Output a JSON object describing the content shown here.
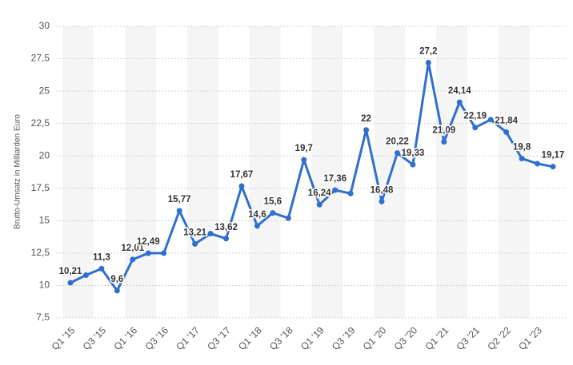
{
  "chart_data": {
    "type": "line",
    "y_axis_label": "Brutto-Umsatz in Milliarden Euro",
    "categories": [
      "Q1 '15",
      null,
      "Q3 '15",
      null,
      "Q1 '16",
      null,
      "Q3 '16",
      null,
      "Q1 '17",
      null,
      "Q3 '17",
      null,
      "Q1 '18",
      null,
      "Q3 '18",
      null,
      "Q1 '19",
      null,
      "Q3 '19",
      null,
      "Q1 '20",
      null,
      "Q3 '20",
      null,
      "Q1 '21",
      null,
      "Q3 '21",
      null,
      "Q2 '22",
      null,
      "Q1 '23",
      null
    ],
    "series": [
      {
        "color": "#2f6fcf",
        "values": [
          10.21,
          10.8,
          11.3,
          9.6,
          12.01,
          12.49,
          12.5,
          15.77,
          13.21,
          14.0,
          13.62,
          17.67,
          14.6,
          15.6,
          15.2,
          19.7,
          16.24,
          17.36,
          17.1,
          22,
          16.48,
          20.22,
          19.33,
          27.2,
          21.09,
          24.14,
          22.19,
          22.8,
          21.84,
          19.8,
          19.4,
          19.17
        ],
        "value_labels": [
          "10,21",
          null,
          "11,3",
          "9,6",
          "12,01",
          "12,49",
          null,
          "15,77",
          "13,21",
          null,
          "13,62",
          "17,67",
          "14,6",
          "15,6",
          null,
          "19,7",
          "16,24",
          "17,36",
          null,
          "22",
          "16,48",
          "20,22",
          "19,33",
          "27,2",
          "21,09",
          "24,14",
          "22,19",
          null,
          "21,84",
          "19,8",
          null,
          "19,17"
        ]
      }
    ],
    "ylim": [
      7.5,
      30
    ],
    "yticks": [
      {
        "value": 7.5,
        "label": "7,5"
      },
      10,
      {
        "value": 12.5,
        "label": "12,5"
      },
      15,
      {
        "value": 17.5,
        "label": "17,5"
      },
      20,
      {
        "value": 22.5,
        "label": "22,5"
      },
      25,
      {
        "value": 27.5,
        "label": "27,5"
      },
      30
    ],
    "grid": true
  }
}
